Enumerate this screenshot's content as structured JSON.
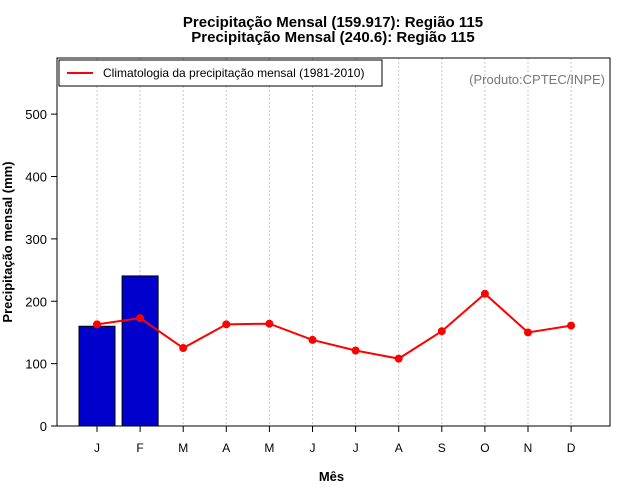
{
  "chart_data": {
    "type": "bar",
    "title_lines": [
      "Precipitação Mensal (159.917): Região 115",
      "Precipitação Mensal (240.6): Região 115"
    ],
    "xlabel": "Mês",
    "ylabel": "Precipitação mensal (mm)",
    "categories": [
      "J",
      "F",
      "M",
      "A",
      "M",
      "J",
      "J",
      "A",
      "S",
      "O",
      "N",
      "D"
    ],
    "ylim": [
      0,
      590
    ],
    "yticks": [
      0,
      100,
      200,
      300,
      400,
      500
    ],
    "grid": "vertical-dotted",
    "credit": "(Produto:CPTEC/INPE)",
    "series": [
      {
        "name": "Precipitação mensal",
        "type": "bar",
        "color": "#0000CC",
        "values": [
          159.917,
          240.6,
          null,
          null,
          null,
          null,
          null,
          null,
          null,
          null,
          null,
          null
        ]
      },
      {
        "name": "Climatologia da precipitação mensal (1981-2010)",
        "type": "line",
        "color": "#FF0000",
        "values": [
          163,
          173,
          125,
          163,
          164,
          138,
          121,
          108,
          152,
          212,
          150,
          161
        ]
      }
    ],
    "legend": {
      "position": "top-left",
      "entries": [
        "Climatologia da precipitação mensal (1981-2010)"
      ]
    }
  }
}
